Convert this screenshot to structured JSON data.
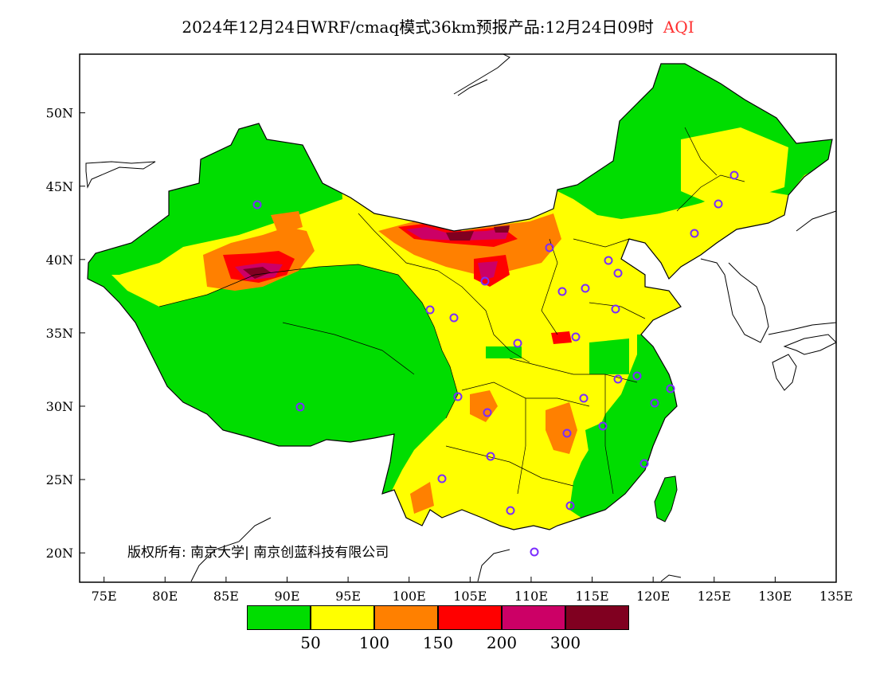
{
  "title": {
    "main": "2024年12月24日WRF/cmaq模式36km预报产品:12月24日09时",
    "highlight": "AQI"
  },
  "map": {
    "lon_range": [
      73,
      135
    ],
    "lat_range": [
      18,
      54
    ],
    "lon_ticks": [
      "75E",
      "80E",
      "85E",
      "90E",
      "95E",
      "100E",
      "105E",
      "110E",
      "115E",
      "120E",
      "125E",
      "130E",
      "135E"
    ],
    "lat_ticks": [
      "20N",
      "25N",
      "30N",
      "35N",
      "40N",
      "45N",
      "50N"
    ]
  },
  "copyright": "版权所有: 南京大学| 南京创蓝科技有限公司",
  "legend": {
    "colors": [
      "#00dd00",
      "#ffff00",
      "#ff8000",
      "#ff0000",
      "#cc0066",
      "#800020"
    ],
    "labels": [
      "50",
      "100",
      "150",
      "200",
      "300"
    ]
  }
}
